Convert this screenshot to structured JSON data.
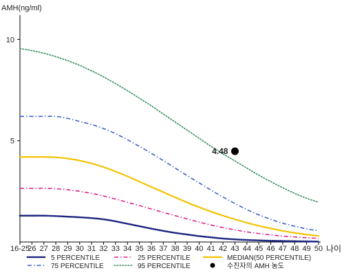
{
  "chart_data": {
    "type": "line",
    "ylabel": "AMH(ng/ml)",
    "xlabel": "나이",
    "ylim": [
      0,
      11.2
    ],
    "yticks": [
      5,
      10
    ],
    "categories": [
      "16-25",
      "26",
      "27",
      "28",
      "29",
      "30",
      "31",
      "32",
      "33",
      "34",
      "35",
      "36",
      "37",
      "38",
      "39",
      "40",
      "41",
      "42",
      "43",
      "44",
      "45",
      "46",
      "47",
      "48",
      "49",
      "50"
    ],
    "grid": false,
    "legend_position": "bottom",
    "series": [
      {
        "name": "5 PERCENTILE",
        "color": "#1a237e",
        "style": "dotted-heavy",
        "values": [
          1.3,
          1.3,
          1.3,
          1.28,
          1.25,
          1.22,
          1.18,
          1.12,
          1.02,
          0.9,
          0.78,
          0.66,
          0.55,
          0.45,
          0.37,
          0.29,
          0.23,
          0.17,
          0.13,
          0.1,
          0.08,
          0.06,
          0.05,
          0.04,
          0.03,
          0.02
        ]
      },
      {
        "name": "75 PERCENTILE",
        "color": "#3a5fc8",
        "style": "dash-dot",
        "values": [
          6.2,
          6.2,
          6.2,
          6.2,
          6.1,
          5.95,
          5.8,
          5.6,
          5.35,
          5.05,
          4.72,
          4.38,
          4.02,
          3.65,
          3.28,
          2.92,
          2.56,
          2.22,
          1.9,
          1.6,
          1.34,
          1.12,
          0.93,
          0.78,
          0.65,
          0.55
        ]
      },
      {
        "name": "25 PERCENTILE",
        "color": "#e0208a",
        "style": "dash-dot",
        "values": [
          2.65,
          2.65,
          2.65,
          2.63,
          2.58,
          2.5,
          2.4,
          2.27,
          2.12,
          1.96,
          1.8,
          1.63,
          1.46,
          1.3,
          1.14,
          0.98,
          0.84,
          0.71,
          0.6,
          0.5,
          0.42,
          0.35,
          0.29,
          0.25,
          0.21,
          0.18
        ]
      },
      {
        "name": "95 PERCENTILE",
        "color": "#2e8b57",
        "style": "dotted",
        "values": [
          9.55,
          9.45,
          9.32,
          9.15,
          8.95,
          8.72,
          8.45,
          8.15,
          7.82,
          7.47,
          7.1,
          6.72,
          6.32,
          5.92,
          5.52,
          5.12,
          4.72,
          4.35,
          4.0,
          3.65,
          3.3,
          2.98,
          2.68,
          2.4,
          2.16,
          1.96
        ]
      },
      {
        "name": "MEDIAN(50 PERCENTILE)",
        "color": "#f2c200",
        "style": "solid",
        "values": [
          4.2,
          4.2,
          4.2,
          4.18,
          4.12,
          4.02,
          3.88,
          3.7,
          3.48,
          3.24,
          2.98,
          2.72,
          2.46,
          2.2,
          1.95,
          1.72,
          1.5,
          1.3,
          1.12,
          0.95,
          0.8,
          0.67,
          0.55,
          0.45,
          0.37,
          0.3
        ]
      }
    ],
    "annotations": [
      {
        "label": "수진자의 AMH 농도",
        "x": "43",
        "y": 4.48,
        "text": "4.48",
        "color": "#000000"
      }
    ]
  }
}
